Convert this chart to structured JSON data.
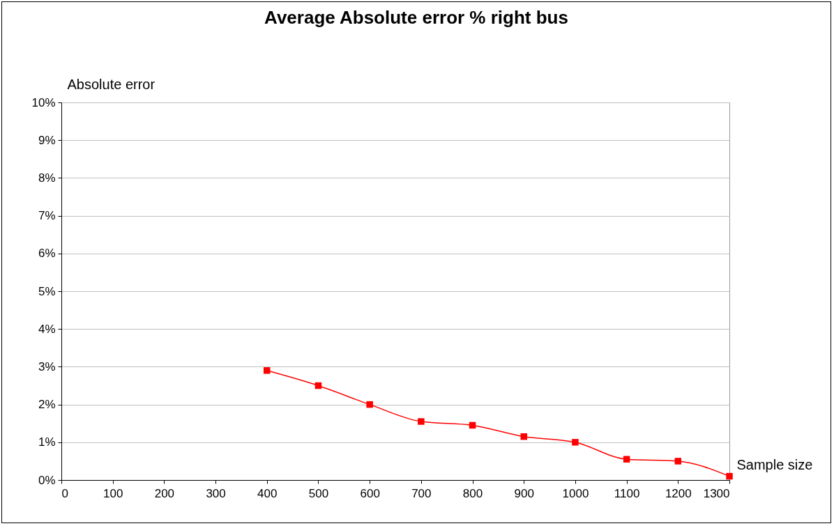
{
  "chart_data": {
    "type": "line",
    "title": "Average Absolute error % right bus",
    "xlabel": "Sample size",
    "ylabel": "Absolute error",
    "x": [
      400,
      500,
      600,
      700,
      800,
      900,
      1000,
      1100,
      1200,
      1300
    ],
    "series": [
      {
        "color": "#ff0000",
        "values": [
          2.9,
          2.5,
          2.0,
          1.55,
          1.45,
          1.15,
          1.0,
          0.55,
          0.5,
          0.1
        ]
      }
    ],
    "xlim": [
      0,
      1300
    ],
    "xticks": [
      0,
      100,
      200,
      300,
      400,
      500,
      600,
      700,
      800,
      900,
      1000,
      1100,
      1200,
      1300
    ],
    "ylim": [
      0,
      10
    ],
    "yticks": [
      {
        "value": 0,
        "label": "0%"
      },
      {
        "value": 1,
        "label": "1%"
      },
      {
        "value": 2,
        "label": "2%"
      },
      {
        "value": 3,
        "label": "3%"
      },
      {
        "value": 4,
        "label": "4%"
      },
      {
        "value": 5,
        "label": "5%"
      },
      {
        "value": 6,
        "label": "6%"
      },
      {
        "value": 7,
        "label": "7%"
      },
      {
        "value": 8,
        "label": "8%"
      },
      {
        "value": 9,
        "label": "9%"
      },
      {
        "value": 10,
        "label": "10%"
      }
    ],
    "grid": "y",
    "marker": "square",
    "line_style": "solid"
  }
}
